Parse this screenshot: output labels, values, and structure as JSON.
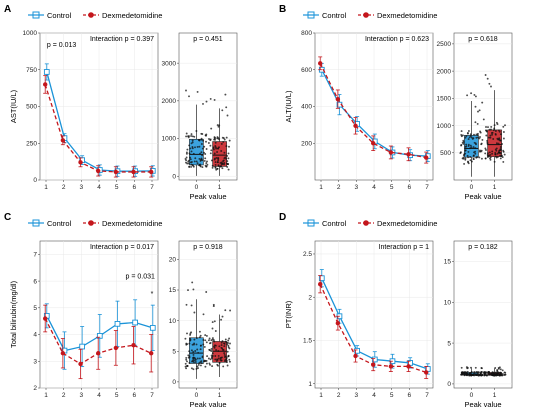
{
  "colors": {
    "control": "#1a93d8",
    "dex": "#c4161c",
    "jitter": "#111111"
  },
  "legend": {
    "control": "Control",
    "dex": "Dexmedetomidine"
  },
  "panels": [
    {
      "letter": "A",
      "line": {
        "ylabel": "AST(IU/L)",
        "interaction": "Interaction p = 0.397",
        "annotations": [
          {
            "text": "p = 0.013",
            "at_x": 1.05,
            "at_y": 905
          }
        ],
        "ylim": [
          0,
          1000
        ],
        "yticks": [
          0,
          250,
          500,
          750,
          1000
        ]
      },
      "box": {
        "xlabel": "Peak value",
        "pvalue": "p = 0.451",
        "ylim": [
          -100,
          3800
        ],
        "yticks": [
          0,
          1000,
          2000,
          3000
        ]
      }
    },
    {
      "letter": "B",
      "line": {
        "ylabel": "ALT(IU/L)",
        "interaction": "Interaction p = 0.623",
        "annotations": [],
        "ylim": [
          0,
          800
        ],
        "yticks": [
          200,
          400,
          600,
          800
        ]
      },
      "box": {
        "xlabel": "Peak value",
        "pvalue": "p = 0.618",
        "ylim": [
          0,
          2700
        ],
        "yticks": [
          500,
          1000,
          1500,
          2000,
          2500
        ]
      }
    },
    {
      "letter": "C",
      "line": {
        "ylabel": "Total bilirubin(mg/dl)",
        "interaction": "Interaction p = 0.017",
        "annotations": [
          {
            "text": "p = 0.031",
            "at_x": 5.5,
            "at_y": 6.1
          },
          {
            "text": "*",
            "at_x": 7.0,
            "at_y": 5.45
          }
        ],
        "ylim": [
          2.0,
          7.5
        ],
        "yticks": [
          2,
          3,
          4,
          5,
          6,
          7
        ]
      },
      "box": {
        "xlabel": "Peak value",
        "pvalue": "p = 0.918",
        "ylim": [
          -1,
          23
        ],
        "yticks": [
          0,
          5,
          10,
          15,
          20
        ]
      }
    },
    {
      "letter": "D",
      "line": {
        "ylabel": "PT(INR)",
        "interaction": "Interaction p = 1",
        "annotations": [],
        "ylim": [
          0.95,
          2.65
        ],
        "yticks": [
          1.0,
          1.5,
          2.0,
          2.5
        ]
      },
      "box": {
        "xlabel": "Peak value",
        "pvalue": "p = 0.182",
        "ylim": [
          -0.5,
          17.5
        ],
        "yticks": [
          0,
          5,
          10,
          15
        ]
      }
    }
  ],
  "chart_data": [
    {
      "type": "line",
      "x": [
        1,
        2,
        3,
        4,
        5,
        6,
        7
      ],
      "ylabel": "AST(IU/L)",
      "ylim": [
        0,
        1000
      ],
      "series": [
        {
          "name": "Control",
          "values": [
            735,
            285,
            135,
            68,
            60,
            60,
            62
          ],
          "err": [
            55,
            30,
            30,
            35,
            35,
            35,
            35
          ]
        },
        {
          "name": "Dexmedetomidine",
          "values": [
            650,
            270,
            120,
            62,
            55,
            55,
            55
          ],
          "err": [
            60,
            30,
            30,
            35,
            35,
            35,
            35
          ]
        }
      ]
    },
    {
      "type": "box",
      "categories": [
        "0",
        "1"
      ],
      "xlabel": "Peak value",
      "ylim": [
        -100,
        3800
      ],
      "boxes": [
        {
          "name": "Control",
          "q1": 300,
          "median": 580,
          "q3": 980,
          "whisker_low": 10,
          "whisker_high": 1900
        },
        {
          "name": "Dexmedetomidine",
          "q1": 260,
          "median": 560,
          "q3": 920,
          "whisker_low": 10,
          "whisker_high": 1800
        }
      ]
    },
    {
      "type": "line",
      "x": [
        1,
        2,
        3,
        4,
        5,
        6,
        7
      ],
      "ylabel": "ALT(IU/L)",
      "ylim": [
        0,
        800
      ],
      "series": [
        {
          "name": "Control",
          "values": [
            600,
            410,
            305,
            210,
            150,
            135,
            130
          ],
          "err": [
            35,
            55,
            40,
            40,
            30,
            30,
            30
          ]
        },
        {
          "name": "Dexmedetomidine",
          "values": [
            635,
            440,
            295,
            200,
            150,
            140,
            122
          ],
          "err": [
            35,
            50,
            45,
            40,
            35,
            35,
            30
          ]
        }
      ]
    },
    {
      "type": "box",
      "categories": [
        "0",
        "1"
      ],
      "xlabel": "Peak value",
      "ylim": [
        0,
        2700
      ],
      "boxes": [
        {
          "name": "Control",
          "q1": 420,
          "median": 580,
          "q3": 820,
          "whisker_low": 60,
          "whisker_high": 1450
        },
        {
          "name": "Dexmedetomidine",
          "q1": 430,
          "median": 650,
          "q3": 920,
          "whisker_low": 60,
          "whisker_high": 1650
        }
      ]
    },
    {
      "type": "line",
      "x": [
        1,
        2,
        3,
        4,
        5,
        6,
        7
      ],
      "ylabel": "Total bilirubin(mg/dl)",
      "ylim": [
        2.0,
        7.5
      ],
      "series": [
        {
          "name": "Control",
          "values": [
            4.7,
            3.4,
            3.55,
            3.95,
            4.4,
            4.45,
            4.25
          ],
          "err": [
            0.45,
            0.7,
            0.75,
            0.8,
            0.85,
            0.85,
            0.85
          ]
        },
        {
          "name": "Dexmedetomidine",
          "values": [
            4.6,
            3.3,
            2.9,
            3.3,
            3.5,
            3.6,
            3.3
          ],
          "err": [
            0.5,
            0.55,
            0.55,
            0.6,
            0.65,
            0.7,
            0.7
          ]
        }
      ]
    },
    {
      "type": "box",
      "categories": [
        "0",
        "1"
      ],
      "xlabel": "Peak value",
      "ylim": [
        -1,
        23
      ],
      "boxes": [
        {
          "name": "Control",
          "q1": 3.0,
          "median": 4.7,
          "q3": 7.2,
          "whisker_low": 0.5,
          "whisker_high": 13.5
        },
        {
          "name": "Dexmedetomidine",
          "q1": 3.2,
          "median": 5.0,
          "q3": 6.6,
          "whisker_low": 0.8,
          "whisker_high": 11.0
        }
      ]
    },
    {
      "type": "line",
      "x": [
        1,
        2,
        3,
        4,
        5,
        6,
        7
      ],
      "ylabel": "PT(INR)",
      "ylim": [
        0.95,
        2.65
      ],
      "series": [
        {
          "name": "Control",
          "values": [
            2.22,
            1.78,
            1.38,
            1.28,
            1.26,
            1.24,
            1.17
          ],
          "err": [
            0.1,
            0.08,
            0.06,
            0.09,
            0.08,
            0.06,
            0.06
          ]
        },
        {
          "name": "Dexmedetomidine",
          "values": [
            2.15,
            1.7,
            1.32,
            1.22,
            1.2,
            1.2,
            1.13
          ],
          "err": [
            0.1,
            0.08,
            0.07,
            0.07,
            0.06,
            0.06,
            0.07
          ]
        }
      ]
    },
    {
      "type": "box",
      "categories": [
        "0",
        "1"
      ],
      "xlabel": "Peak value",
      "ylim": [
        -0.5,
        17.5
      ],
      "boxes": [
        {
          "name": "Control",
          "q1": 1.05,
          "median": 1.2,
          "q3": 1.4,
          "whisker_low": 0.9,
          "whisker_high": 1.9
        },
        {
          "name": "Dexmedetomidine",
          "q1": 1.05,
          "median": 1.2,
          "q3": 1.4,
          "whisker_low": 0.9,
          "whisker_high": 1.9
        }
      ]
    }
  ]
}
